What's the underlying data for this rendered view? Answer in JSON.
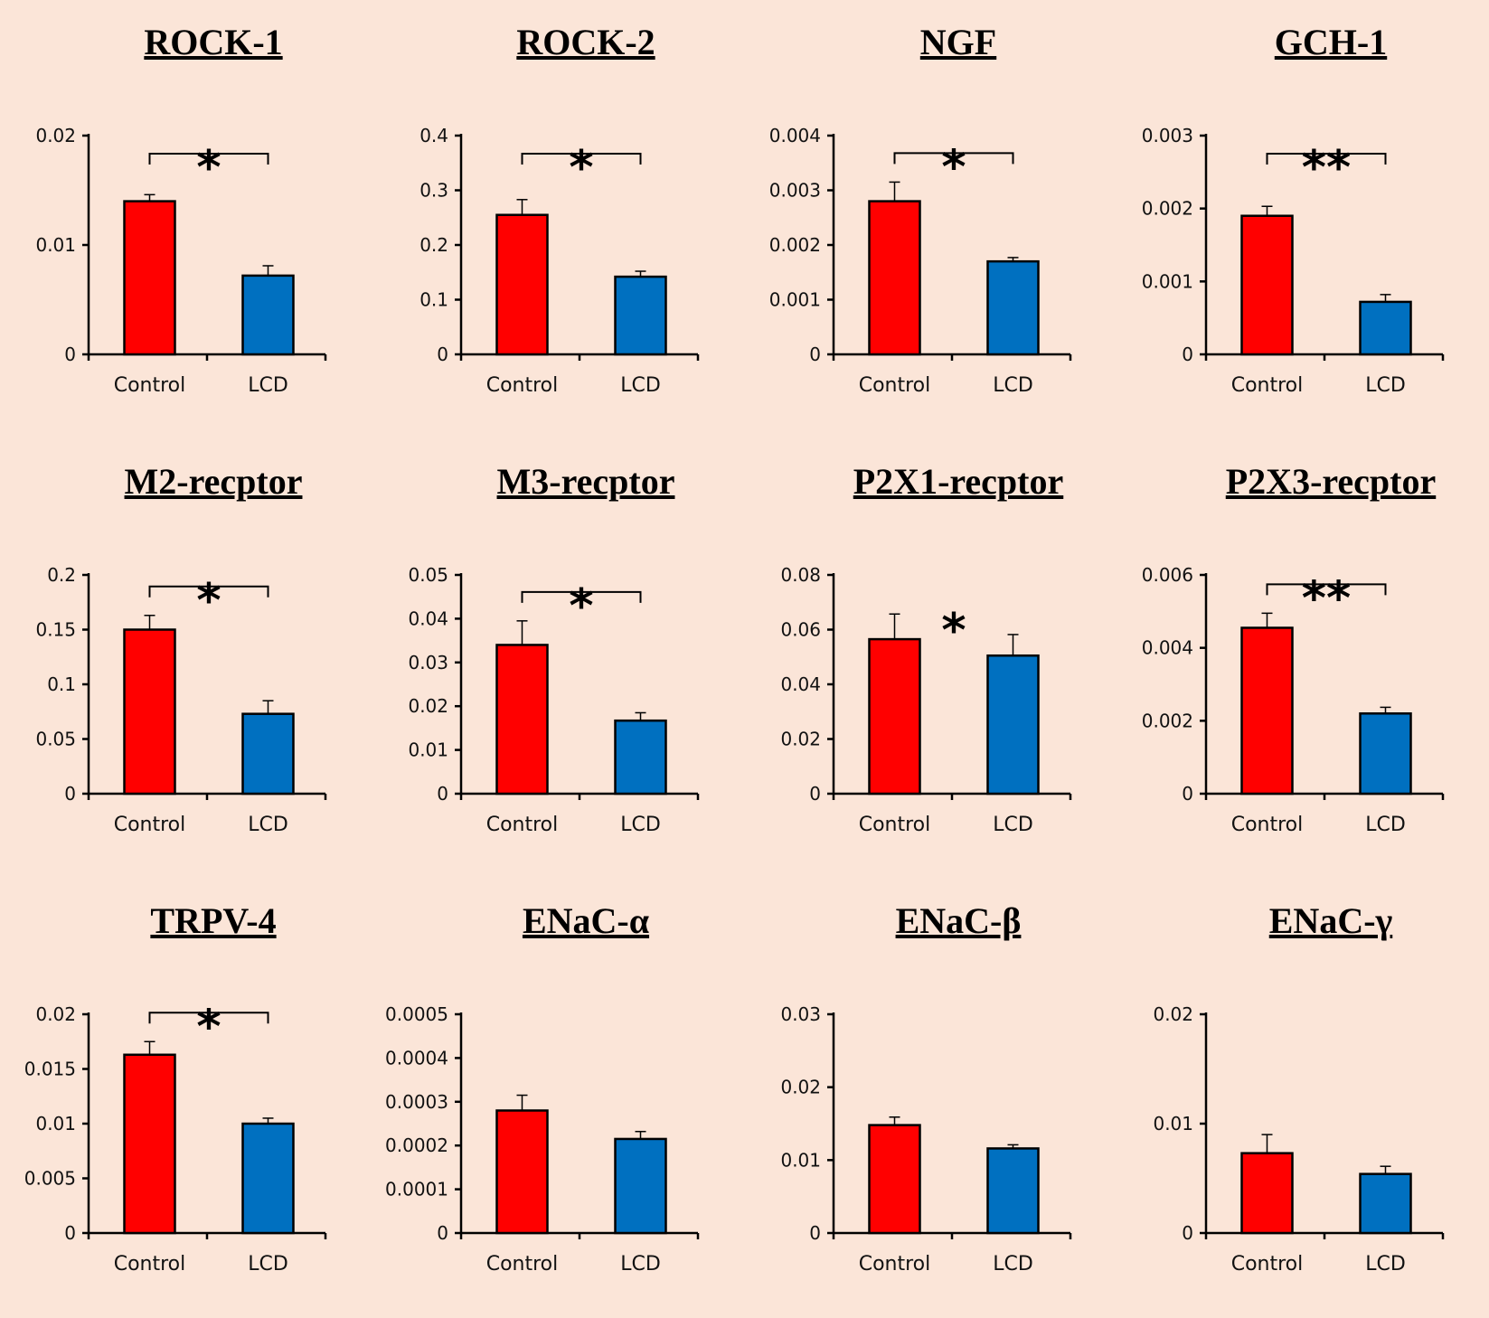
{
  "colors": {
    "background": "#fbe5d8",
    "control": "#ff0000",
    "lcd": "#0070c0",
    "axis": "#000000"
  },
  "chart_data": [
    {
      "type": "bar",
      "title": "ROCK-1",
      "categories": [
        "Control",
        "LCD"
      ],
      "values": [
        0.014,
        0.0072
      ],
      "errors": [
        0.0006,
        0.0009
      ],
      "yticks": [
        "0",
        "0.01",
        "0.02"
      ],
      "ylim": [
        0,
        0.02
      ],
      "significance": "*",
      "bracket": true
    },
    {
      "type": "bar",
      "title": "ROCK-2",
      "categories": [
        "Control",
        "LCD"
      ],
      "values": [
        0.255,
        0.142
      ],
      "errors": [
        0.028,
        0.01
      ],
      "yticks": [
        "0",
        "0.1",
        "0.2",
        "0.3",
        "0.4"
      ],
      "ylim": [
        0,
        0.4
      ],
      "significance": "*",
      "bracket": true
    },
    {
      "type": "bar",
      "title": "NGF",
      "categories": [
        "Control",
        "LCD"
      ],
      "values": [
        0.0028,
        0.0017
      ],
      "errors": [
        0.00035,
        7e-05
      ],
      "yticks": [
        "0",
        "0.001",
        "0.002",
        "0.003",
        "0.004"
      ],
      "ylim": [
        0,
        0.004
      ],
      "significance": "*",
      "bracket": true
    },
    {
      "type": "bar",
      "title": "GCH-1",
      "categories": [
        "Control",
        "LCD"
      ],
      "values": [
        0.0019,
        0.00072
      ],
      "errors": [
        0.00013,
        0.0001
      ],
      "yticks": [
        "0",
        "0.001",
        "0.002",
        "0.003"
      ],
      "ylim": [
        0,
        0.003
      ],
      "significance": "**",
      "bracket": true
    },
    {
      "type": "bar",
      "title": "M2-recptor",
      "categories": [
        "Control",
        "LCD"
      ],
      "values": [
        0.15,
        0.073
      ],
      "errors": [
        0.013,
        0.012
      ],
      "yticks": [
        "0",
        "0.05",
        "0.1",
        "0.15",
        "0.2"
      ],
      "ylim": [
        0,
        0.2
      ],
      "significance": "*",
      "bracket": true
    },
    {
      "type": "bar",
      "title": "M3-recptor",
      "categories": [
        "Control",
        "LCD"
      ],
      "values": [
        0.034,
        0.0167
      ],
      "errors": [
        0.0055,
        0.0018
      ],
      "yticks": [
        "0",
        "0.01",
        "0.02",
        "0.03",
        "0.04",
        "0.05"
      ],
      "ylim": [
        0,
        0.05
      ],
      "significance": "*",
      "bracket": true
    },
    {
      "type": "bar",
      "title": "P2X1-recptor",
      "categories": [
        "Control",
        "LCD"
      ],
      "values": [
        0.0565,
        0.0505
      ],
      "errors": [
        0.0092,
        0.0077
      ],
      "yticks": [
        "0",
        "0.02",
        "0.04",
        "0.06",
        "0.08"
      ],
      "ylim": [
        0,
        0.08
      ],
      "significance": "*",
      "bracket": false
    },
    {
      "type": "bar",
      "title": "P2X3-recptor",
      "categories": [
        "Control",
        "LCD"
      ],
      "values": [
        0.00455,
        0.0022
      ],
      "errors": [
        0.0004,
        0.00017
      ],
      "yticks": [
        "0",
        "0.002",
        "0.004",
        "0.006"
      ],
      "ylim": [
        0,
        0.006
      ],
      "significance": "**",
      "bracket": true
    },
    {
      "type": "bar",
      "title": "TRPV-4",
      "categories": [
        "Control",
        "LCD"
      ],
      "values": [
        0.0163,
        0.01
      ],
      "errors": [
        0.0012,
        0.0005
      ],
      "yticks": [
        "0",
        "0.005",
        "0.01",
        "0.015",
        "0.02"
      ],
      "ylim": [
        0,
        0.02
      ],
      "significance": "*",
      "bracket": true
    },
    {
      "type": "bar",
      "title": "ENaC-α",
      "categories": [
        "Control",
        "LCD"
      ],
      "values": [
        0.00028,
        0.000215
      ],
      "errors": [
        3.5e-05,
        1.7e-05
      ],
      "yticks": [
        "0",
        "0.0001",
        "0.0002",
        "0.0003",
        "0.0004",
        "0.0005"
      ],
      "ylim": [
        0,
        0.0005
      ],
      "significance": "",
      "bracket": false
    },
    {
      "type": "bar",
      "title": "ENaC-β",
      "categories": [
        "Control",
        "LCD"
      ],
      "values": [
        0.0148,
        0.0116
      ],
      "errors": [
        0.0011,
        0.0005
      ],
      "yticks": [
        "0",
        "0.01",
        "0.02",
        "0.03"
      ],
      "ylim": [
        0,
        0.03
      ],
      "significance": "",
      "bracket": false
    },
    {
      "type": "bar",
      "title": "ENaC-γ",
      "categories": [
        "Control",
        "LCD"
      ],
      "values": [
        0.0073,
        0.0054
      ],
      "errors": [
        0.0017,
        0.0007
      ],
      "yticks": [
        "0",
        "0.01",
        "0.02"
      ],
      "ylim": [
        0,
        0.02
      ],
      "significance": "",
      "bracket": false
    }
  ]
}
